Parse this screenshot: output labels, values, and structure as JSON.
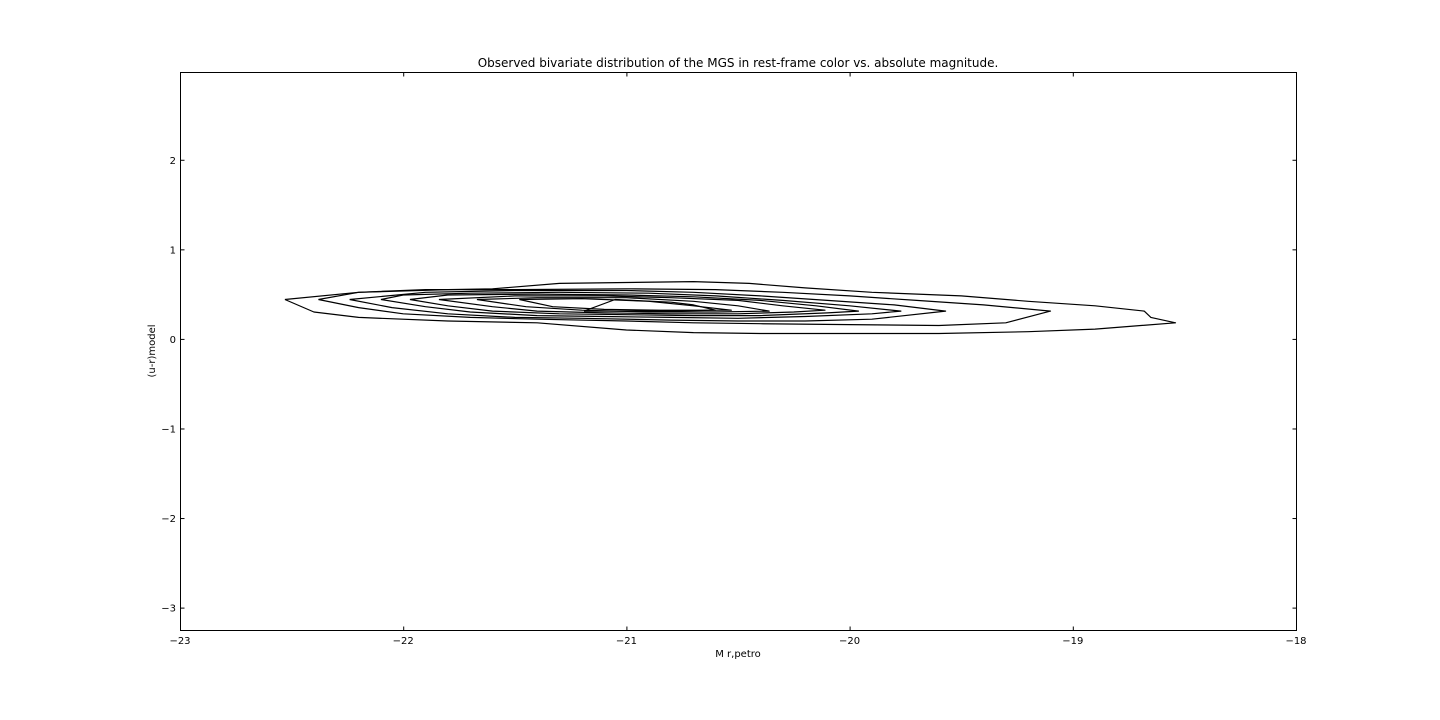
{
  "chart_data": {
    "type": "contour",
    "title": "Observed bivariate distribution of the MGS in rest-frame color vs. absolute magnitude.",
    "xlabel": "M r,petro",
    "ylabel": "(u-r)model",
    "xlim": [
      -23,
      -18
    ],
    "ylim": [
      -3.25,
      2.98
    ],
    "x_ticks": [
      -23,
      -22,
      -21,
      -20,
      -19,
      -18
    ],
    "x_tick_labels": [
      "−23",
      "−22",
      "−21",
      "−20",
      "−19",
      "−18"
    ],
    "y_ticks": [
      -3,
      -2,
      -1,
      0,
      1,
      2
    ],
    "y_tick_labels": [
      "−3",
      "−2",
      "−1",
      "0",
      "1",
      "2"
    ],
    "grid": false,
    "line_color": "#000000",
    "contours": [
      {
        "level": 1,
        "points": [
          [
            -22.53,
            0.44
          ],
          [
            -22.4,
            0.3
          ],
          [
            -22.2,
            0.24
          ],
          [
            -21.8,
            0.2
          ],
          [
            -21.4,
            0.18
          ],
          [
            -21.0,
            0.1
          ],
          [
            -20.7,
            0.07
          ],
          [
            -20.4,
            0.06
          ],
          [
            -20.0,
            0.06
          ],
          [
            -19.6,
            0.06
          ],
          [
            -19.2,
            0.08
          ],
          [
            -18.9,
            0.11
          ],
          [
            -18.54,
            0.18
          ],
          [
            -18.65,
            0.24
          ],
          [
            -18.68,
            0.31
          ],
          [
            -18.9,
            0.37
          ],
          [
            -19.2,
            0.42
          ],
          [
            -19.5,
            0.48
          ],
          [
            -19.9,
            0.52
          ],
          [
            -20.2,
            0.57
          ],
          [
            -20.45,
            0.62
          ],
          [
            -20.7,
            0.64
          ],
          [
            -21.0,
            0.63
          ],
          [
            -21.3,
            0.62
          ],
          [
            -21.6,
            0.56
          ],
          [
            -21.8,
            0.55
          ],
          [
            -22.2,
            0.52
          ],
          [
            -22.53,
            0.44
          ]
        ]
      },
      {
        "level": 2,
        "points": [
          [
            -22.38,
            0.44
          ],
          [
            -22.2,
            0.35
          ],
          [
            -22.0,
            0.28
          ],
          [
            -21.7,
            0.24
          ],
          [
            -21.4,
            0.22
          ],
          [
            -21.0,
            0.2
          ],
          [
            -20.7,
            0.18
          ],
          [
            -20.4,
            0.17
          ],
          [
            -20.0,
            0.16
          ],
          [
            -19.6,
            0.15
          ],
          [
            -19.3,
            0.18
          ],
          [
            -19.1,
            0.31
          ],
          [
            -19.4,
            0.38
          ],
          [
            -19.7,
            0.43
          ],
          [
            -20.0,
            0.48
          ],
          [
            -20.3,
            0.52
          ],
          [
            -20.6,
            0.55
          ],
          [
            -21.0,
            0.56
          ],
          [
            -21.5,
            0.55
          ],
          [
            -21.9,
            0.55
          ],
          [
            -22.2,
            0.52
          ],
          [
            -22.38,
            0.44
          ]
        ]
      },
      {
        "level": 3,
        "points": [
          [
            -22.24,
            0.44
          ],
          [
            -22.05,
            0.35
          ],
          [
            -21.8,
            0.28
          ],
          [
            -21.5,
            0.24
          ],
          [
            -21.2,
            0.23
          ],
          [
            -20.8,
            0.21
          ],
          [
            -20.5,
            0.2
          ],
          [
            -20.2,
            0.2
          ],
          [
            -19.9,
            0.22
          ],
          [
            -19.57,
            0.31
          ],
          [
            -19.8,
            0.38
          ],
          [
            -20.1,
            0.43
          ],
          [
            -20.4,
            0.48
          ],
          [
            -20.7,
            0.52
          ],
          [
            -21.0,
            0.54
          ],
          [
            -21.5,
            0.54
          ],
          [
            -21.9,
            0.52
          ],
          [
            -22.24,
            0.44
          ]
        ]
      },
      {
        "level": 4,
        "points": [
          [
            -22.1,
            0.44
          ],
          [
            -21.9,
            0.36
          ],
          [
            -21.7,
            0.3
          ],
          [
            -21.4,
            0.26
          ],
          [
            -21.1,
            0.25
          ],
          [
            -20.8,
            0.24
          ],
          [
            -20.5,
            0.23
          ],
          [
            -20.2,
            0.25
          ],
          [
            -19.9,
            0.28
          ],
          [
            -19.77,
            0.31
          ],
          [
            -20.0,
            0.37
          ],
          [
            -20.3,
            0.43
          ],
          [
            -20.6,
            0.48
          ],
          [
            -20.9,
            0.51
          ],
          [
            -21.3,
            0.52
          ],
          [
            -21.7,
            0.51
          ],
          [
            -22.0,
            0.49
          ],
          [
            -22.1,
            0.44
          ]
        ]
      },
      {
        "level": 5,
        "points": [
          [
            -21.97,
            0.44
          ],
          [
            -21.8,
            0.37
          ],
          [
            -21.6,
            0.31
          ],
          [
            -21.3,
            0.28
          ],
          [
            -21.0,
            0.27
          ],
          [
            -20.7,
            0.26
          ],
          [
            -20.4,
            0.26
          ],
          [
            -20.1,
            0.29
          ],
          [
            -19.96,
            0.31
          ],
          [
            -20.15,
            0.37
          ],
          [
            -20.4,
            0.43
          ],
          [
            -20.7,
            0.47
          ],
          [
            -21.0,
            0.49
          ],
          [
            -21.4,
            0.5
          ],
          [
            -21.8,
            0.49
          ],
          [
            -21.97,
            0.44
          ]
        ]
      },
      {
        "level": 6,
        "points": [
          [
            -21.84,
            0.44
          ],
          [
            -21.6,
            0.36
          ],
          [
            -21.4,
            0.31
          ],
          [
            -21.1,
            0.29
          ],
          [
            -20.8,
            0.28
          ],
          [
            -20.5,
            0.28
          ],
          [
            -20.25,
            0.3
          ],
          [
            -20.11,
            0.32
          ],
          [
            -20.3,
            0.37
          ],
          [
            -20.5,
            0.43
          ],
          [
            -20.8,
            0.46
          ],
          [
            -21.1,
            0.48
          ],
          [
            -21.5,
            0.48
          ],
          [
            -21.84,
            0.44
          ]
        ]
      },
      {
        "level": 7,
        "points": [
          [
            -21.67,
            0.44
          ],
          [
            -21.45,
            0.36
          ],
          [
            -21.2,
            0.32
          ],
          [
            -20.9,
            0.3
          ],
          [
            -20.6,
            0.3
          ],
          [
            -20.36,
            0.31
          ],
          [
            -20.5,
            0.37
          ],
          [
            -20.7,
            0.42
          ],
          [
            -21.0,
            0.46
          ],
          [
            -21.4,
            0.46
          ],
          [
            -21.67,
            0.44
          ]
        ]
      },
      {
        "level": 8,
        "points": [
          [
            -21.48,
            0.44
          ],
          [
            -21.33,
            0.36
          ],
          [
            -21.1,
            0.33
          ],
          [
            -20.85,
            0.32
          ],
          [
            -20.53,
            0.32
          ],
          [
            -20.7,
            0.37
          ],
          [
            -20.9,
            0.42
          ],
          [
            -21.2,
            0.45
          ],
          [
            -21.48,
            0.44
          ]
        ]
      },
      {
        "level": 9,
        "points": [
          [
            -21.19,
            0.31
          ],
          [
            -21.0,
            0.31
          ],
          [
            -20.8,
            0.31
          ],
          [
            -20.6,
            0.32
          ],
          [
            -20.7,
            0.38
          ],
          [
            -20.8,
            0.41
          ],
          [
            -21.05,
            0.44
          ],
          [
            -21.19,
            0.31
          ]
        ]
      }
    ]
  }
}
